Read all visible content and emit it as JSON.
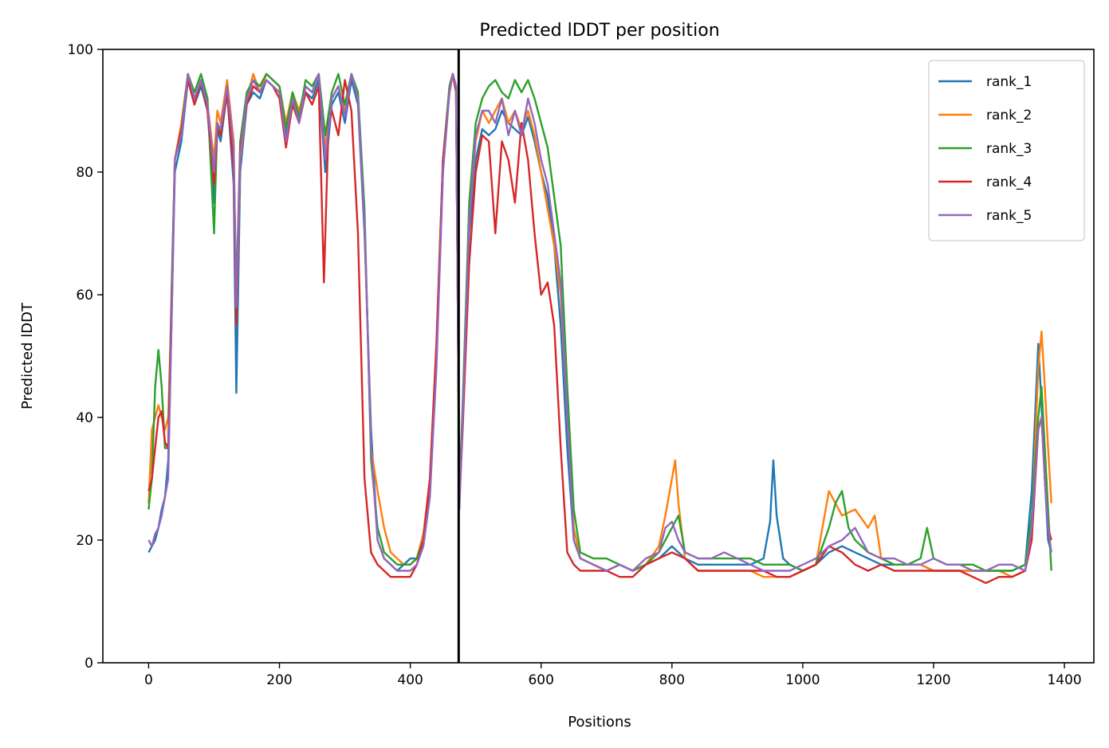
{
  "chart_data": {
    "type": "line",
    "title": "Predicted lDDT per position",
    "xlabel": "Positions",
    "ylabel": "Predicted lDDT",
    "xlim": [
      -70,
      1445
    ],
    "ylim": [
      0,
      100
    ],
    "xticks": [
      0,
      200,
      400,
      600,
      800,
      1000,
      1200,
      1400
    ],
    "yticks": [
      0,
      20,
      40,
      60,
      80,
      100
    ],
    "grid": false,
    "legend_position": "top-right",
    "vertical_line": 474,
    "series": [
      {
        "name": "rank_1",
        "color": "#1f77b4",
        "x": [
          0,
          5,
          10,
          15,
          20,
          25,
          30,
          35,
          40,
          50,
          60,
          70,
          80,
          90,
          100,
          105,
          110,
          120,
          130,
          134,
          140,
          150,
          160,
          170,
          180,
          190,
          200,
          210,
          220,
          230,
          240,
          250,
          260,
          270,
          280,
          290,
          300,
          310,
          320,
          330,
          340,
          350,
          360,
          370,
          380,
          390,
          400,
          410,
          420,
          430,
          440,
          450,
          460,
          465,
          470,
          475,
          480,
          490,
          500,
          510,
          520,
          530,
          540,
          550,
          560,
          570,
          580,
          590,
          600,
          610,
          620,
          630,
          640,
          650,
          660,
          680,
          700,
          720,
          740,
          760,
          780,
          800,
          820,
          840,
          860,
          880,
          900,
          920,
          940,
          950,
          955,
          960,
          970,
          980,
          1000,
          1020,
          1040,
          1060,
          1080,
          1100,
          1120,
          1140,
          1160,
          1180,
          1200,
          1220,
          1240,
          1260,
          1280,
          1300,
          1320,
          1340,
          1350,
          1360,
          1365,
          1370,
          1375,
          1380
        ],
        "y": [
          18,
          19,
          20,
          22,
          25,
          27,
          33,
          55,
          80,
          85,
          95,
          91,
          94,
          90,
          75,
          87,
          85,
          93,
          78,
          44,
          80,
          91,
          93,
          92,
          95,
          94,
          93,
          86,
          92,
          88,
          93,
          92,
          95,
          80,
          91,
          93,
          88,
          95,
          91,
          70,
          38,
          20,
          17,
          16,
          15,
          16,
          17,
          17,
          21,
          28,
          50,
          80,
          94,
          96,
          94,
          27,
          40,
          70,
          82,
          87,
          86,
          87,
          90,
          88,
          87,
          86,
          89,
          85,
          80,
          76,
          68,
          55,
          35,
          20,
          17,
          16,
          15,
          16,
          15,
          16,
          17,
          19,
          17,
          16,
          16,
          16,
          16,
          16,
          17,
          23,
          33,
          24,
          17,
          16,
          15,
          16,
          18,
          19,
          18,
          17,
          16,
          16,
          16,
          16,
          15,
          15,
          15,
          15,
          15,
          15,
          15,
          16,
          28,
          52,
          42,
          30,
          20,
          18
        ]
      },
      {
        "name": "rank_2",
        "color": "#ff7f0e",
        "x": [
          0,
          5,
          10,
          15,
          20,
          25,
          30,
          35,
          40,
          50,
          60,
          70,
          80,
          90,
          100,
          105,
          110,
          120,
          130,
          134,
          140,
          150,
          160,
          170,
          180,
          190,
          200,
          210,
          220,
          230,
          240,
          250,
          260,
          270,
          280,
          290,
          300,
          310,
          320,
          330,
          340,
          350,
          360,
          370,
          380,
          390,
          400,
          410,
          420,
          430,
          440,
          450,
          460,
          465,
          470,
          475,
          480,
          490,
          500,
          510,
          520,
          530,
          540,
          550,
          560,
          570,
          580,
          590,
          600,
          610,
          620,
          630,
          640,
          650,
          660,
          680,
          700,
          720,
          740,
          760,
          780,
          790,
          800,
          805,
          810,
          820,
          840,
          860,
          880,
          900,
          920,
          940,
          960,
          980,
          1000,
          1020,
          1040,
          1060,
          1080,
          1100,
          1110,
          1120,
          1140,
          1160,
          1180,
          1200,
          1220,
          1240,
          1260,
          1280,
          1300,
          1320,
          1340,
          1350,
          1360,
          1365,
          1370,
          1375,
          1380
        ],
        "y": [
          26,
          38,
          40,
          42,
          40,
          38,
          40,
          58,
          82,
          88,
          96,
          92,
          95,
          91,
          82,
          90,
          88,
          95,
          85,
          55,
          82,
          92,
          96,
          93,
          96,
          95,
          94,
          88,
          93,
          90,
          94,
          93,
          96,
          84,
          92,
          94,
          90,
          96,
          92,
          72,
          35,
          28,
          22,
          18,
          17,
          16,
          16,
          17,
          21,
          30,
          52,
          82,
          94,
          96,
          93,
          28,
          40,
          72,
          85,
          90,
          88,
          90,
          92,
          88,
          90,
          87,
          90,
          86,
          80,
          74,
          68,
          60,
          40,
          22,
          17,
          16,
          15,
          16,
          15,
          16,
          19,
          24,
          30,
          33,
          26,
          17,
          15,
          15,
          15,
          15,
          15,
          14,
          14,
          14,
          15,
          16,
          28,
          24,
          25,
          22,
          24,
          17,
          16,
          16,
          16,
          15,
          15,
          15,
          15,
          15,
          15,
          14,
          15,
          22,
          48,
          54,
          45,
          35,
          26
        ]
      },
      {
        "name": "rank_3",
        "color": "#2ca02c",
        "x": [
          0,
          5,
          10,
          15,
          20,
          25,
          30,
          35,
          40,
          50,
          60,
          70,
          80,
          90,
          100,
          105,
          110,
          120,
          130,
          134,
          140,
          150,
          160,
          170,
          180,
          190,
          200,
          210,
          220,
          230,
          240,
          250,
          260,
          270,
          280,
          290,
          300,
          310,
          320,
          330,
          340,
          350,
          360,
          370,
          380,
          390,
          400,
          410,
          420,
          430,
          440,
          450,
          460,
          465,
          470,
          475,
          480,
          490,
          500,
          510,
          520,
          530,
          540,
          550,
          560,
          570,
          580,
          590,
          600,
          610,
          620,
          630,
          640,
          650,
          660,
          680,
          700,
          720,
          740,
          760,
          780,
          800,
          810,
          820,
          840,
          860,
          880,
          900,
          920,
          940,
          960,
          980,
          1000,
          1020,
          1040,
          1050,
          1060,
          1070,
          1080,
          1100,
          1120,
          1140,
          1160,
          1180,
          1190,
          1200,
          1220,
          1240,
          1260,
          1280,
          1300,
          1320,
          1340,
          1350,
          1360,
          1365,
          1370,
          1375,
          1380
        ],
        "y": [
          25,
          30,
          45,
          51,
          45,
          35,
          35,
          60,
          82,
          87,
          96,
          93,
          96,
          92,
          70,
          88,
          86,
          94,
          82,
          60,
          85,
          93,
          95,
          94,
          96,
          95,
          94,
          87,
          93,
          89,
          95,
          94,
          96,
          86,
          93,
          96,
          91,
          96,
          93,
          74,
          33,
          22,
          18,
          17,
          16,
          16,
          16,
          17,
          20,
          29,
          50,
          82,
          94,
          96,
          94,
          28,
          42,
          75,
          88,
          92,
          94,
          95,
          93,
          92,
          95,
          93,
          95,
          92,
          88,
          84,
          76,
          68,
          45,
          25,
          18,
          17,
          17,
          16,
          15,
          16,
          18,
          22,
          24,
          18,
          17,
          17,
          17,
          17,
          17,
          16,
          16,
          16,
          15,
          16,
          22,
          26,
          28,
          22,
          20,
          18,
          17,
          16,
          16,
          17,
          22,
          17,
          16,
          16,
          16,
          15,
          15,
          15,
          16,
          24,
          40,
          45,
          35,
          25,
          15
        ]
      },
      {
        "name": "rank_4",
        "color": "#d62728",
        "x": [
          0,
          5,
          10,
          15,
          20,
          25,
          30,
          35,
          40,
          50,
          60,
          70,
          80,
          90,
          100,
          105,
          110,
          120,
          130,
          134,
          140,
          150,
          160,
          170,
          180,
          190,
          200,
          210,
          220,
          230,
          240,
          250,
          260,
          268,
          275,
          280,
          290,
          300,
          310,
          320,
          330,
          340,
          350,
          360,
          370,
          380,
          390,
          400,
          410,
          420,
          430,
          440,
          450,
          460,
          465,
          470,
          475,
          480,
          490,
          500,
          510,
          520,
          530,
          540,
          550,
          560,
          570,
          580,
          590,
          600,
          610,
          620,
          630,
          640,
          650,
          660,
          680,
          700,
          720,
          740,
          760,
          780,
          800,
          820,
          840,
          860,
          880,
          900,
          920,
          940,
          960,
          980,
          1000,
          1020,
          1040,
          1060,
          1080,
          1100,
          1120,
          1140,
          1160,
          1180,
          1200,
          1220,
          1240,
          1260,
          1280,
          1300,
          1320,
          1340,
          1350,
          1360,
          1365,
          1370,
          1375,
          1380
        ],
        "y": [
          28,
          30,
          35,
          40,
          41,
          36,
          35,
          58,
          82,
          87,
          95,
          91,
          95,
          90,
          78,
          87,
          86,
          93,
          80,
          55,
          84,
          91,
          94,
          93,
          95,
          94,
          92,
          84,
          91,
          88,
          93,
          91,
          94,
          62,
          88,
          90,
          86,
          95,
          90,
          70,
          30,
          18,
          16,
          15,
          14,
          14,
          14,
          14,
          16,
          20,
          30,
          52,
          82,
          93,
          96,
          93,
          26,
          38,
          65,
          80,
          86,
          85,
          70,
          85,
          82,
          75,
          88,
          82,
          70,
          60,
          62,
          55,
          35,
          18,
          16,
          15,
          15,
          15,
          14,
          14,
          16,
          17,
          18,
          17,
          15,
          15,
          15,
          15,
          15,
          15,
          14,
          14,
          15,
          16,
          19,
          18,
          16,
          15,
          16,
          15,
          15,
          15,
          15,
          15,
          15,
          14,
          13,
          14,
          14,
          15,
          20,
          38,
          40,
          30,
          22,
          20
        ]
      },
      {
        "name": "rank_5",
        "color": "#9467bd",
        "x": [
          0,
          5,
          10,
          15,
          20,
          25,
          30,
          35,
          40,
          50,
          60,
          70,
          80,
          90,
          100,
          105,
          110,
          120,
          130,
          134,
          140,
          150,
          160,
          170,
          180,
          190,
          200,
          210,
          220,
          230,
          240,
          250,
          260,
          270,
          280,
          290,
          300,
          310,
          320,
          330,
          340,
          350,
          360,
          370,
          380,
          390,
          400,
          410,
          420,
          430,
          440,
          450,
          460,
          465,
          470,
          475,
          480,
          490,
          500,
          510,
          520,
          530,
          540,
          550,
          560,
          570,
          580,
          590,
          600,
          610,
          620,
          630,
          640,
          650,
          660,
          680,
          700,
          720,
          740,
          760,
          780,
          790,
          800,
          810,
          820,
          840,
          860,
          880,
          900,
          920,
          940,
          960,
          980,
          1000,
          1020,
          1040,
          1060,
          1080,
          1100,
          1120,
          1140,
          1160,
          1180,
          1200,
          1220,
          1240,
          1260,
          1280,
          1300,
          1320,
          1340,
          1350,
          1360,
          1365,
          1370,
          1375,
          1380
        ],
        "y": [
          20,
          19,
          21,
          22,
          24,
          27,
          30,
          55,
          82,
          86,
          96,
          92,
          95,
          91,
          80,
          88,
          87,
          94,
          84,
          58,
          83,
          92,
          95,
          93,
          95,
          94,
          93,
          85,
          92,
          88,
          94,
          93,
          96,
          82,
          92,
          94,
          89,
          96,
          92,
          72,
          35,
          20,
          17,
          16,
          15,
          15,
          15,
          16,
          19,
          27,
          48,
          80,
          93,
          96,
          94,
          25,
          40,
          72,
          86,
          90,
          90,
          88,
          92,
          86,
          90,
          86,
          92,
          88,
          82,
          78,
          70,
          62,
          40,
          20,
          17,
          16,
          15,
          16,
          15,
          17,
          18,
          22,
          23,
          20,
          18,
          17,
          17,
          18,
          17,
          16,
          15,
          15,
          15,
          16,
          17,
          19,
          20,
          22,
          18,
          17,
          17,
          16,
          16,
          17,
          16,
          16,
          15,
          15,
          16,
          16,
          15,
          22,
          38,
          40,
          30,
          22,
          18
        ]
      }
    ]
  }
}
